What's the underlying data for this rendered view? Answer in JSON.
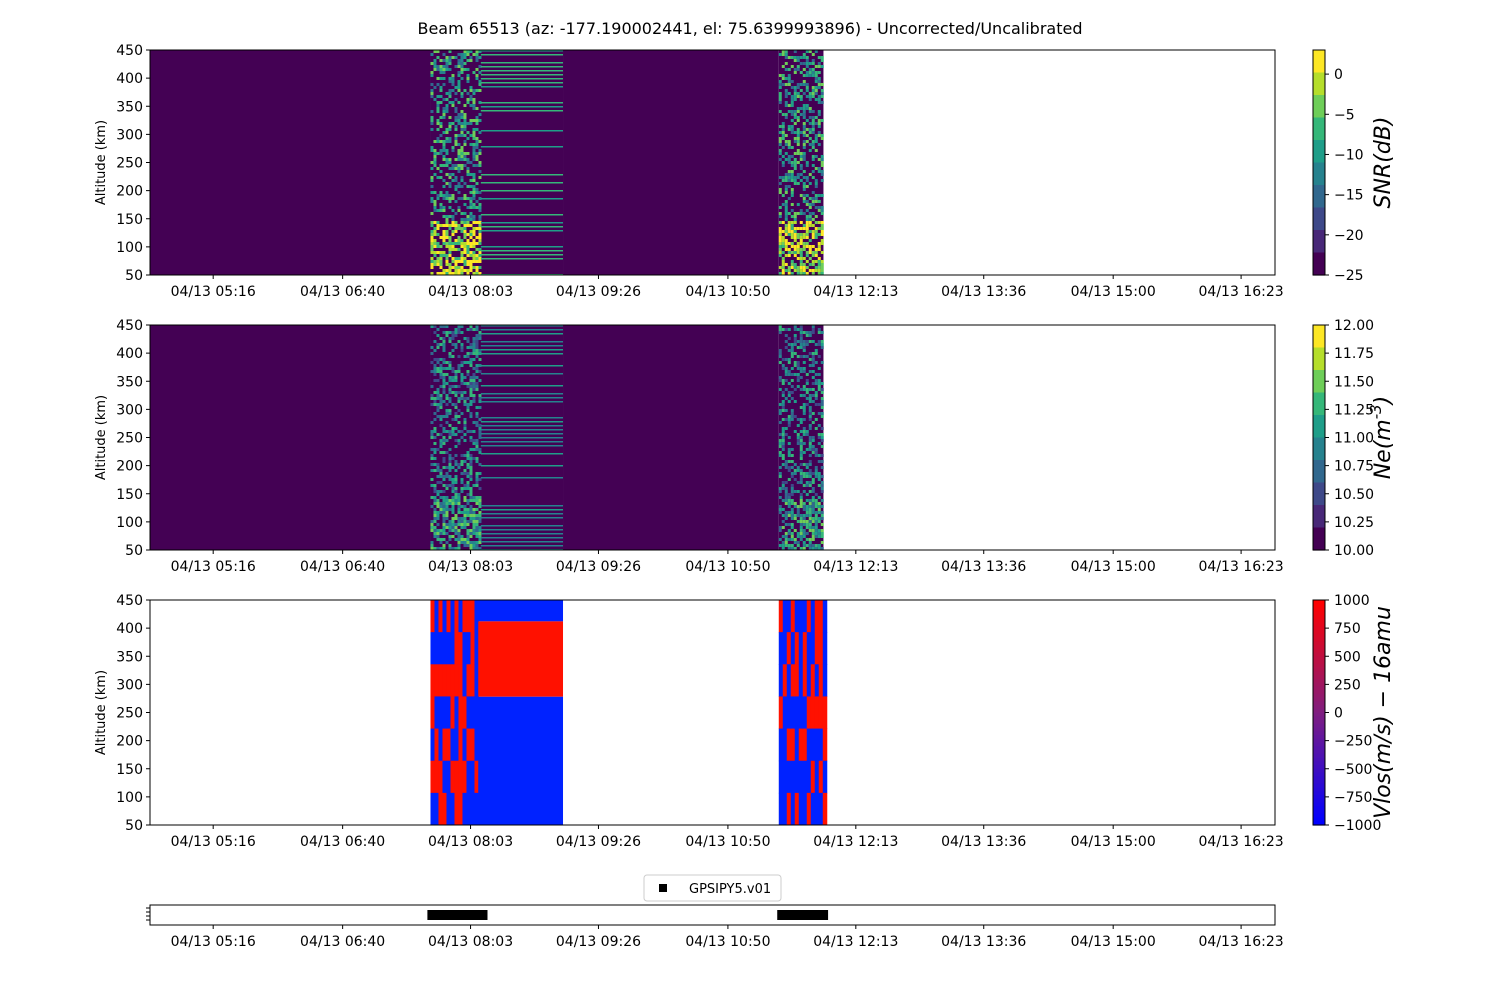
{
  "title": "Beam 65513 (az: -177.190002441, el: 75.6399993896) - Uncorrected/Uncalibrated",
  "chart_data": [
    {
      "type": "heatmap",
      "ylabel": "Altitude (km)",
      "ylim": [
        50,
        450
      ],
      "yticks": [
        "50",
        "100",
        "150",
        "200",
        "250",
        "300",
        "350",
        "400",
        "450"
      ],
      "xticks": [
        "04/13 05:16",
        "04/13 06:40",
        "04/13 08:03",
        "04/13 09:26",
        "04/13 10:50",
        "04/13 12:13",
        "04/13 13:36",
        "04/13 15:00",
        "04/13 16:23"
      ],
      "xlim": [
        "04/13 04:35",
        "04/13 16:45"
      ],
      "colormap": "viridis",
      "clim": [
        -25,
        3
      ],
      "colorbar_label": "SNR(dB)",
      "colorbar_ticks": [
        "0",
        "−5",
        "−10",
        "−15",
        "−20",
        "−25"
      ],
      "data_blocks": [
        {
          "start": "04/13 04:35",
          "end": "04/13 07:37",
          "level": "minimum"
        },
        {
          "start": "04/13 07:37",
          "end": "04/13 09:03",
          "level": "noisy"
        },
        {
          "start": "04/13 09:03",
          "end": "04/13 11:23",
          "level": "minimum"
        },
        {
          "start": "04/13 11:23",
          "end": "04/13 11:52",
          "level": "noisy"
        }
      ]
    },
    {
      "type": "heatmap",
      "ylabel": "Altitude (km)",
      "ylim": [
        50,
        450
      ],
      "yticks": [
        "50",
        "100",
        "150",
        "200",
        "250",
        "300",
        "350",
        "400",
        "450"
      ],
      "xticks": [
        "04/13 05:16",
        "04/13 06:40",
        "04/13 08:03",
        "04/13 09:26",
        "04/13 10:50",
        "04/13 12:13",
        "04/13 13:36",
        "04/13 15:00",
        "04/13 16:23"
      ],
      "xlim": [
        "04/13 04:35",
        "04/13 16:45"
      ],
      "colormap": "viridis",
      "clim": [
        10,
        12
      ],
      "colorbar_label": "Ne(m^-3)",
      "colorbar_ticks": [
        "12.00",
        "11.75",
        "11.50",
        "11.25",
        "11.00",
        "10.75",
        "10.50",
        "10.25",
        "10.00"
      ],
      "data_blocks": [
        {
          "start": "04/13 04:35",
          "end": "04/13 07:37",
          "level": "minimum"
        },
        {
          "start": "04/13 07:37",
          "end": "04/13 09:03",
          "level": "noisy"
        },
        {
          "start": "04/13 09:03",
          "end": "04/13 11:23",
          "level": "minimum"
        },
        {
          "start": "04/13 11:23",
          "end": "04/13 11:52",
          "level": "noisy"
        }
      ]
    },
    {
      "type": "heatmap",
      "ylabel": "Altitude (km)",
      "ylim": [
        50,
        450
      ],
      "yticks": [
        "50",
        "100",
        "150",
        "200",
        "250",
        "300",
        "350",
        "400",
        "450"
      ],
      "xticks": [
        "04/13 05:16",
        "04/13 06:40",
        "04/13 08:03",
        "04/13 09:26",
        "04/13 10:50",
        "04/13 12:13",
        "04/13 13:36",
        "04/13 15:00",
        "04/13 16:23"
      ],
      "xlim": [
        "04/13 04:35",
        "04/13 16:45"
      ],
      "colormap": "bwr",
      "clim": [
        -1000,
        1000
      ],
      "colorbar_label": "Vlos(m/s) − 16amu",
      "colorbar_ticks": [
        "1000",
        "750",
        "500",
        "250",
        "0",
        "−250",
        "−500",
        "−750",
        "−1000"
      ],
      "data_blocks": [
        {
          "start": "04/13 07:37",
          "end": "04/13 08:08",
          "level": "alternating"
        },
        {
          "start": "04/13 08:08",
          "end": "04/13 09:03",
          "level": "split",
          "upper": 1000,
          "lower": -1000,
          "split_altitude": 278,
          "top_band_from": 412
        },
        {
          "start": "04/13 11:23",
          "end": "04/13 11:52",
          "level": "alternating"
        }
      ]
    },
    {
      "type": "scatter",
      "xticks": [
        "04/13 05:16",
        "04/13 06:40",
        "04/13 08:03",
        "04/13 09:26",
        "04/13 10:50",
        "04/13 12:13",
        "04/13 13:36",
        "04/13 15:00",
        "04/13 16:23"
      ],
      "xlim": [
        "04/13 04:35",
        "04/13 16:45"
      ],
      "legend": [
        "GPSIPY5.v01"
      ],
      "legend_placement": "top-center",
      "series": [
        {
          "name": "GPSIPY5.v01",
          "segments": [
            [
              "04/13 07:35",
              "04/13 08:14"
            ],
            [
              "04/13 11:22",
              "04/13 11:55"
            ]
          ]
        }
      ]
    }
  ]
}
